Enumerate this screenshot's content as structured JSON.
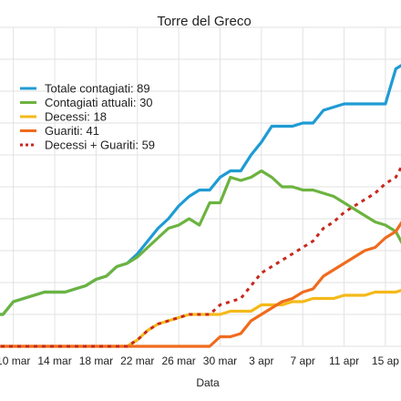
{
  "chart_data": {
    "type": "line",
    "title": "Torre del Greco",
    "xlabel": "Data",
    "ylabel": "",
    "ylim": [
      0,
      100
    ],
    "grid": true,
    "legend_position": "top-left",
    "x": [
      "8 mar",
      "9 mar",
      "10 mar",
      "11 mar",
      "12 mar",
      "13 mar",
      "14 mar",
      "15 mar",
      "16 mar",
      "17 mar",
      "18 mar",
      "19 mar",
      "20 mar",
      "21 mar",
      "22 mar",
      "23 mar",
      "24 mar",
      "25 mar",
      "26 mar",
      "27 mar",
      "28 mar",
      "29 mar",
      "30 mar",
      "31 mar",
      "1 apr",
      "2 apr",
      "3 apr",
      "4 apr",
      "5 apr",
      "6 apr",
      "7 apr",
      "8 apr",
      "9 apr",
      "10 apr",
      "11 apr",
      "12 apr",
      "13 apr",
      "14 apr",
      "15 apr",
      "16 apr",
      "17 apr"
    ],
    "x_tick_labels": [
      "r",
      "10 mar",
      "14 mar",
      "18 mar",
      "22 mar",
      "26 mar",
      "30 mar",
      "3 apr",
      "7 apr",
      "11 apr",
      "15 ap"
    ],
    "series": [
      {
        "name": "Totale contagiati: 89",
        "color": "#1f9bd4",
        "dashed": false,
        "values": [
          10,
          10,
          14,
          15,
          16,
          17,
          17,
          17,
          18,
          19,
          21,
          22,
          25,
          26,
          29,
          33,
          37,
          40,
          44,
          47,
          49,
          49,
          53,
          55,
          55,
          60,
          64,
          69,
          69,
          69,
          70,
          70,
          74,
          75,
          76,
          76,
          76,
          76,
          76,
          87,
          89
        ]
      },
      {
        "name": "Contagiati attuali: 30",
        "color": "#6cb33f",
        "dashed": false,
        "values": [
          10,
          10,
          14,
          15,
          16,
          17,
          17,
          17,
          18,
          19,
          21,
          22,
          25,
          26,
          28,
          31,
          34,
          37,
          38,
          40,
          38,
          45,
          45,
          53,
          52,
          53,
          55,
          53,
          50,
          50,
          49,
          49,
          48,
          47,
          45,
          43,
          41,
          39,
          38,
          36,
          30
        ]
      },
      {
        "name": "Decessi: 18",
        "color": "#f4b91a",
        "dashed": false,
        "values": [
          0,
          0,
          0,
          0,
          0,
          0,
          0,
          0,
          0,
          0,
          0,
          0,
          0,
          0,
          2,
          5,
          7,
          8,
          9,
          10,
          10,
          10,
          10,
          11,
          11,
          11,
          13,
          13,
          13,
          14,
          14,
          15,
          15,
          15,
          16,
          16,
          16,
          17,
          17,
          17,
          18
        ]
      },
      {
        "name": "Guariti: 41",
        "color": "#ef6b1e",
        "dashed": false,
        "values": [
          0,
          0,
          0,
          0,
          0,
          0,
          0,
          0,
          0,
          0,
          0,
          0,
          0,
          0,
          0,
          0,
          0,
          0,
          0,
          0,
          0,
          0,
          3,
          3,
          4,
          8,
          10,
          12,
          14,
          15,
          17,
          18,
          22,
          24,
          26,
          28,
          30,
          31,
          34,
          36,
          41
        ]
      },
      {
        "name": "Decessi + Guariti: 59",
        "color": "#c8281e",
        "dashed": true,
        "values": [
          0,
          0,
          0,
          0,
          0,
          0,
          0,
          0,
          0,
          0,
          0,
          0,
          0,
          0,
          2,
          5,
          7,
          8,
          9,
          10,
          10,
          10,
          13,
          14,
          15,
          19,
          23,
          25,
          27,
          29,
          31,
          33,
          37,
          39,
          42,
          44,
          46,
          48,
          51,
          53,
          59
        ]
      }
    ]
  }
}
